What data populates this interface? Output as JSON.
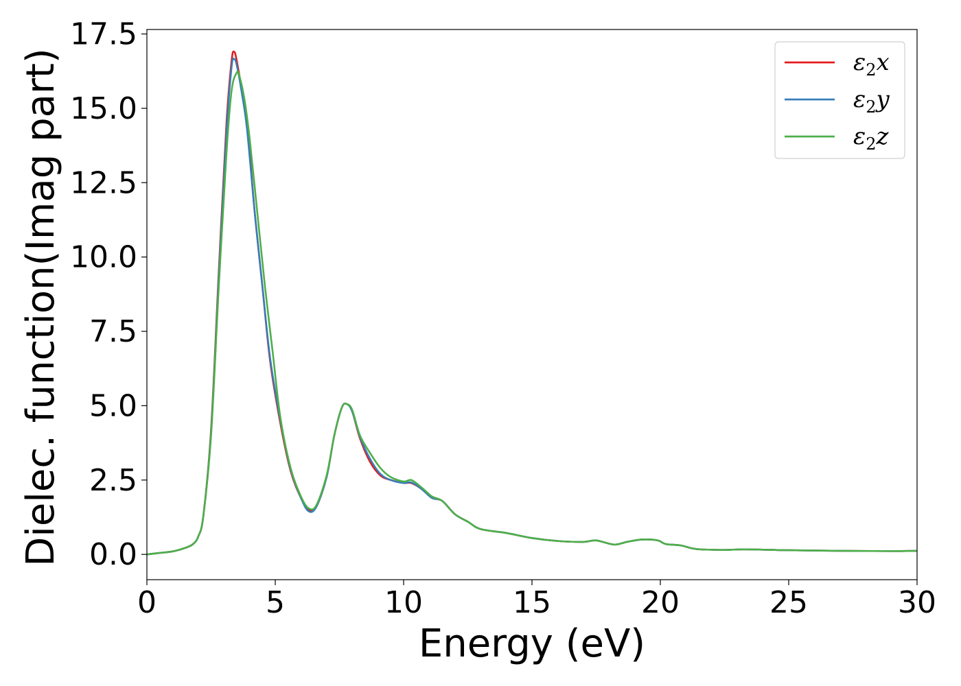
{
  "chart_data": {
    "type": "line",
    "title": "",
    "xlabel": "Energy (eV)",
    "ylabel": "Dielec. function(Imag part)",
    "xlim": [
      0,
      30
    ],
    "ylim": [
      -0.85,
      17.65
    ],
    "xticks": [
      0,
      5,
      10,
      15,
      20,
      25,
      30
    ],
    "xtick_labels": [
      "0",
      "5",
      "10",
      "15",
      "20",
      "25",
      "30"
    ],
    "yticks": [
      0.0,
      2.5,
      5.0,
      7.5,
      10.0,
      12.5,
      15.0,
      17.5
    ],
    "ytick_labels": [
      "0.0",
      "2.5",
      "5.0",
      "7.5",
      "10.0",
      "12.5",
      "15.0",
      "17.5"
    ],
    "grid": false,
    "legend_position": "top-right",
    "series": [
      {
        "name": "ε2x",
        "legend_base": "ε",
        "legend_sub": "2",
        "legend_suffix": "x",
        "color": "#e41a1c",
        "points": [
          [
            0,
            0.0
          ],
          [
            0.5,
            0.05
          ],
          [
            1.0,
            0.1
          ],
          [
            1.5,
            0.22
          ],
          [
            1.8,
            0.35
          ],
          [
            2.0,
            0.6
          ],
          [
            2.2,
            1.3
          ],
          [
            2.5,
            4.2
          ],
          [
            2.8,
            9.5
          ],
          [
            3.1,
            14.5
          ],
          [
            3.3,
            16.6
          ],
          [
            3.4,
            16.9
          ],
          [
            3.5,
            16.6
          ],
          [
            3.7,
            15.6
          ],
          [
            3.9,
            14.5
          ],
          [
            4.2,
            11.5
          ],
          [
            4.5,
            9.0
          ],
          [
            4.8,
            6.5
          ],
          [
            5.2,
            4.4
          ],
          [
            5.6,
            2.8
          ],
          [
            6.0,
            1.9
          ],
          [
            6.3,
            1.5
          ],
          [
            6.6,
            1.6
          ],
          [
            7.0,
            2.6
          ],
          [
            7.3,
            4.0
          ],
          [
            7.6,
            4.95
          ],
          [
            7.8,
            5.05
          ],
          [
            8.0,
            4.8
          ],
          [
            8.3,
            3.9
          ],
          [
            8.7,
            3.1
          ],
          [
            9.1,
            2.65
          ],
          [
            9.5,
            2.5
          ],
          [
            10.0,
            2.4
          ],
          [
            10.3,
            2.4
          ],
          [
            10.7,
            2.2
          ],
          [
            11.1,
            1.9
          ],
          [
            11.5,
            1.8
          ],
          [
            12.0,
            1.35
          ],
          [
            12.5,
            1.1
          ],
          [
            13.0,
            0.85
          ],
          [
            14.0,
            0.72
          ],
          [
            15.0,
            0.55
          ],
          [
            16.0,
            0.45
          ],
          [
            17.0,
            0.42
          ],
          [
            17.5,
            0.47
          ],
          [
            18.2,
            0.33
          ],
          [
            18.7,
            0.42
          ],
          [
            19.3,
            0.5
          ],
          [
            19.9,
            0.47
          ],
          [
            20.2,
            0.35
          ],
          [
            20.8,
            0.3
          ],
          [
            21.4,
            0.18
          ],
          [
            22.5,
            0.15
          ],
          [
            23.3,
            0.17
          ],
          [
            25.0,
            0.14
          ],
          [
            27.0,
            0.12
          ],
          [
            29.0,
            0.11
          ],
          [
            30.0,
            0.12
          ]
        ]
      },
      {
        "name": "ε2y",
        "legend_base": "ε",
        "legend_sub": "2",
        "legend_suffix": "y",
        "color": "#377eb8",
        "points": [
          [
            0,
            0.0
          ],
          [
            0.5,
            0.05
          ],
          [
            1.0,
            0.1
          ],
          [
            1.5,
            0.22
          ],
          [
            1.8,
            0.35
          ],
          [
            2.0,
            0.6
          ],
          [
            2.2,
            1.3
          ],
          [
            2.5,
            4.1
          ],
          [
            2.8,
            9.3
          ],
          [
            3.1,
            14.2
          ],
          [
            3.3,
            16.4
          ],
          [
            3.4,
            16.65
          ],
          [
            3.5,
            16.45
          ],
          [
            3.7,
            15.5
          ],
          [
            3.9,
            14.3
          ],
          [
            4.2,
            11.5
          ],
          [
            4.5,
            9.0
          ],
          [
            4.8,
            6.6
          ],
          [
            5.2,
            4.5
          ],
          [
            5.6,
            2.85
          ],
          [
            6.0,
            1.9
          ],
          [
            6.3,
            1.45
          ],
          [
            6.6,
            1.6
          ],
          [
            7.0,
            2.6
          ],
          [
            7.3,
            4.0
          ],
          [
            7.6,
            4.95
          ],
          [
            7.8,
            5.05
          ],
          [
            8.0,
            4.8
          ],
          [
            8.3,
            3.95
          ],
          [
            8.7,
            3.2
          ],
          [
            9.1,
            2.7
          ],
          [
            9.5,
            2.5
          ],
          [
            10.0,
            2.4
          ],
          [
            10.3,
            2.42
          ],
          [
            10.7,
            2.2
          ],
          [
            11.1,
            1.9
          ],
          [
            11.5,
            1.8
          ],
          [
            12.0,
            1.35
          ],
          [
            12.5,
            1.1
          ],
          [
            13.0,
            0.85
          ],
          [
            14.0,
            0.72
          ],
          [
            15.0,
            0.55
          ],
          [
            16.0,
            0.45
          ],
          [
            17.0,
            0.42
          ],
          [
            17.5,
            0.47
          ],
          [
            18.2,
            0.33
          ],
          [
            18.7,
            0.42
          ],
          [
            19.3,
            0.5
          ],
          [
            19.9,
            0.47
          ],
          [
            20.2,
            0.35
          ],
          [
            20.8,
            0.3
          ],
          [
            21.4,
            0.18
          ],
          [
            22.5,
            0.15
          ],
          [
            23.3,
            0.17
          ],
          [
            25.0,
            0.14
          ],
          [
            27.0,
            0.12
          ],
          [
            29.0,
            0.11
          ],
          [
            30.0,
            0.12
          ]
        ]
      },
      {
        "name": "ε2z",
        "legend_base": "ε",
        "legend_sub": "2",
        "legend_suffix": "z",
        "color": "#4daf4a",
        "points": [
          [
            0,
            0.0
          ],
          [
            0.5,
            0.05
          ],
          [
            1.0,
            0.1
          ],
          [
            1.5,
            0.22
          ],
          [
            1.8,
            0.35
          ],
          [
            2.0,
            0.6
          ],
          [
            2.2,
            1.3
          ],
          [
            2.5,
            4.0
          ],
          [
            2.8,
            9.0
          ],
          [
            3.1,
            13.5
          ],
          [
            3.3,
            15.6
          ],
          [
            3.5,
            16.2
          ],
          [
            3.6,
            16.1
          ],
          [
            3.8,
            15.3
          ],
          [
            4.0,
            14.0
          ],
          [
            4.3,
            11.5
          ],
          [
            4.6,
            9.0
          ],
          [
            4.9,
            6.8
          ],
          [
            5.2,
            4.6
          ],
          [
            5.6,
            2.9
          ],
          [
            6.0,
            1.95
          ],
          [
            6.3,
            1.55
          ],
          [
            6.6,
            1.65
          ],
          [
            7.0,
            2.65
          ],
          [
            7.3,
            4.0
          ],
          [
            7.6,
            4.95
          ],
          [
            7.8,
            5.05
          ],
          [
            8.0,
            4.85
          ],
          [
            8.3,
            4.0
          ],
          [
            8.7,
            3.4
          ],
          [
            9.1,
            2.9
          ],
          [
            9.5,
            2.6
          ],
          [
            10.0,
            2.45
          ],
          [
            10.3,
            2.5
          ],
          [
            10.7,
            2.25
          ],
          [
            11.1,
            1.95
          ],
          [
            11.5,
            1.8
          ],
          [
            12.0,
            1.35
          ],
          [
            12.5,
            1.1
          ],
          [
            13.0,
            0.85
          ],
          [
            14.0,
            0.72
          ],
          [
            15.0,
            0.55
          ],
          [
            16.0,
            0.45
          ],
          [
            17.0,
            0.42
          ],
          [
            17.5,
            0.47
          ],
          [
            18.2,
            0.33
          ],
          [
            18.7,
            0.42
          ],
          [
            19.3,
            0.5
          ],
          [
            19.9,
            0.47
          ],
          [
            20.2,
            0.35
          ],
          [
            20.8,
            0.3
          ],
          [
            21.4,
            0.18
          ],
          [
            22.5,
            0.15
          ],
          [
            23.3,
            0.17
          ],
          [
            25.0,
            0.14
          ],
          [
            27.0,
            0.12
          ],
          [
            29.0,
            0.11
          ],
          [
            30.0,
            0.12
          ]
        ]
      }
    ]
  }
}
